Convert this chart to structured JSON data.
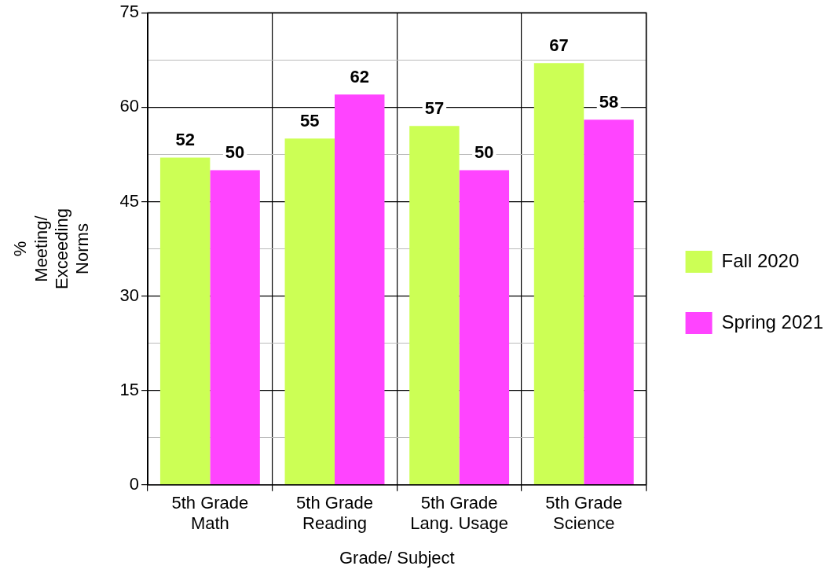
{
  "chart_data": {
    "type": "bar",
    "xlabel": "Grade/ Subject",
    "ylabel": "% Meeting/ Exceeding Norms",
    "categories": [
      "5th Grade Math",
      "5th Grade Reading",
      "5th Grade Lang. Usage",
      "5th Grade Science"
    ],
    "series": [
      {
        "name": "Fall 2020",
        "color": "#ccff55",
        "values": [
          52,
          55,
          57,
          67
        ]
      },
      {
        "name": "Spring 2021",
        "color": "#ff44ff",
        "values": [
          50,
          62,
          50,
          58
        ]
      }
    ],
    "ylim": [
      0,
      75
    ],
    "yticks": [
      0,
      {
        "value": 7.5,
        "label": null
      },
      15,
      {
        "value": 22.5,
        "label": null
      },
      30,
      {
        "value": 37.5,
        "label": null
      },
      45,
      {
        "value": 52.5,
        "label": null
      },
      60,
      {
        "value": 67.5,
        "label": null
      },
      75
    ],
    "grid": true,
    "legend": "right",
    "data_labels": true
  }
}
